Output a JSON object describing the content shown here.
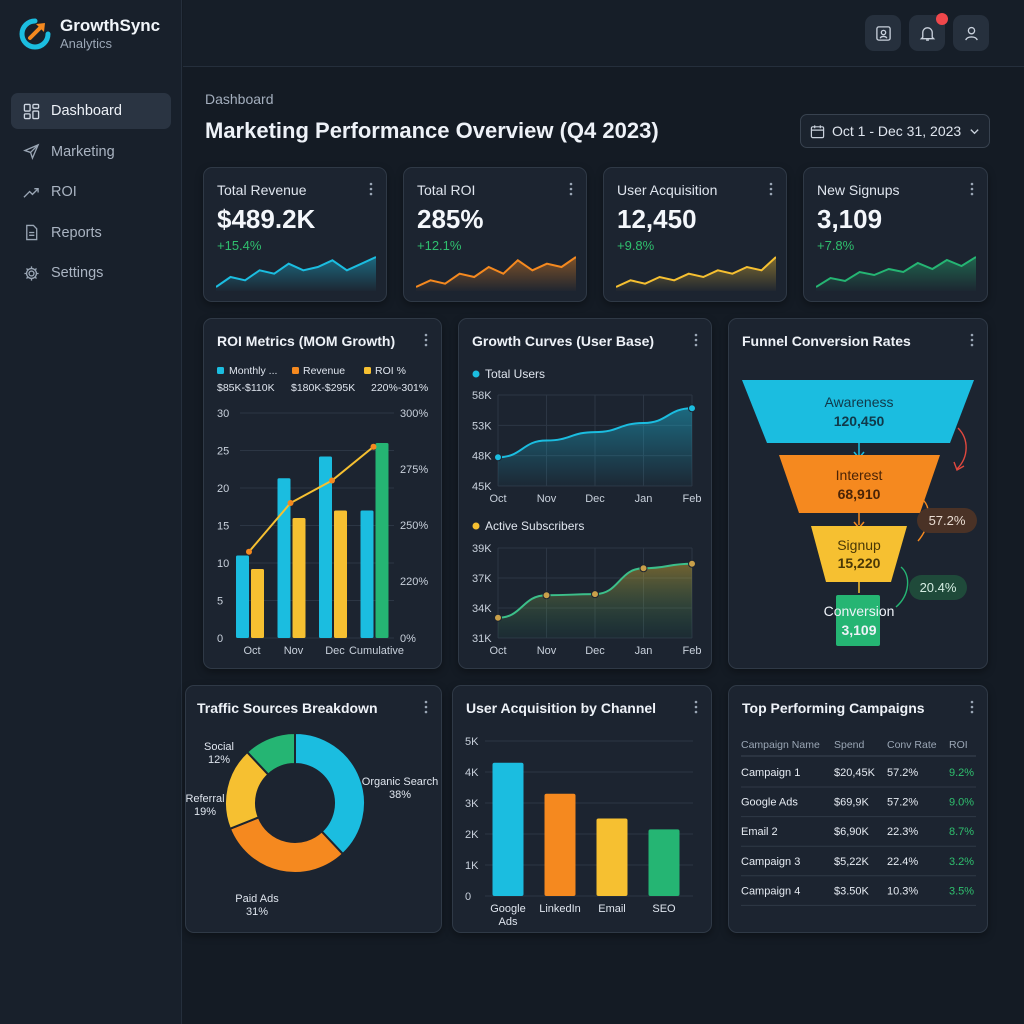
{
  "brand": {
    "name": "GrowthSync",
    "sub": "Analytics"
  },
  "sidebar": {
    "items": [
      {
        "label": "Dashboard",
        "icon": "dashboard-icon",
        "active": true
      },
      {
        "label": "Marketing",
        "icon": "rocket-icon"
      },
      {
        "label": "ROI",
        "icon": "trend-icon"
      },
      {
        "label": "Reports",
        "icon": "document-icon"
      },
      {
        "label": "Settings",
        "icon": "gear-icon"
      }
    ]
  },
  "header": {
    "breadcrumb": "Dashboard",
    "title": "Marketing Performance Overview (Q4 2023)",
    "date_range": "Oct 1 - Dec 31, 2023"
  },
  "colors": {
    "cyan": "#1bbde0",
    "orange": "#f5891f",
    "yellow": "#f6c031",
    "green": "#25b573",
    "positive": "#2fbf6e"
  },
  "kpis": [
    {
      "title": "Total Revenue",
      "value": "$489.2K",
      "delta": "+15.4%",
      "color": "#1bbde0",
      "trend": [
        4,
        7,
        6,
        9,
        8,
        11,
        9,
        10,
        12,
        9,
        11,
        13
      ]
    },
    {
      "title": "Total ROI",
      "value": "285%",
      "delta": "+12.1%",
      "color": "#f5891f",
      "trend": [
        4,
        6,
        5,
        8,
        7,
        10,
        8,
        12,
        9,
        11,
        10,
        13
      ]
    },
    {
      "title": "User Acquisition",
      "value": "12,450",
      "delta": "+9.8%",
      "color": "#f6c031",
      "trend": [
        4,
        6,
        5,
        7,
        6,
        8,
        7,
        9,
        8,
        10,
        9,
        13
      ]
    },
    {
      "title": "New Signups",
      "value": "3,109",
      "delta": "+7.8%",
      "color": "#25b573",
      "trend": [
        3,
        6,
        5,
        8,
        7,
        9,
        8,
        11,
        9,
        12,
        10,
        13
      ]
    }
  ],
  "roi_metrics": {
    "title": "ROI Metrics (MOM Growth)",
    "legend": [
      {
        "name": "Monthly ...",
        "range": "$85K-$110K",
        "color": "#1bbde0"
      },
      {
        "name": "Revenue",
        "range": "$180K-$295K",
        "color": "#f5891f"
      },
      {
        "name": "ROI %",
        "range": "220%-301%",
        "color": "#f6c031"
      }
    ]
  },
  "growth_curves": {
    "title": "Growth Curves (User Base)"
  },
  "funnel": {
    "title": "Funnel Conversion Rates",
    "stages": [
      {
        "name": "Awareness",
        "value": "120,450",
        "color": "#1bbde0"
      },
      {
        "name": "Interest",
        "value": "68,910",
        "color": "#f5891f"
      },
      {
        "name": "Signup",
        "value": "15,220",
        "color": "#f6c031"
      },
      {
        "name": "Conversion",
        "value": "3,109",
        "color": "#25b573"
      }
    ],
    "rates": [
      "57.2%",
      "20.4%"
    ]
  },
  "traffic": {
    "title": "Traffic Sources Breakdown"
  },
  "acquisition": {
    "title": "User Acquisition by Channel"
  },
  "campaigns": {
    "title": "Top Performing Campaigns",
    "columns": [
      "Campaign Name",
      "Spend",
      "Conv Rate",
      "ROI"
    ],
    "rows": [
      [
        "Campaign 1",
        "$20,45K",
        "57.2%",
        "9.2%"
      ],
      [
        "Google Ads",
        "$69,9K",
        "57.2%",
        "9.0%"
      ],
      [
        "Email 2",
        "$6,90K",
        "22.3%",
        "8.7%"
      ],
      [
        "Campaign 3",
        "$5,22K",
        "22.4%",
        "3.2%"
      ],
      [
        "Campaign 4",
        "$3.50K",
        "10.3%",
        "3.5%"
      ]
    ]
  },
  "chart_data": [
    {
      "type": "bar",
      "title": "ROI Metrics (MOM Growth)",
      "categories": [
        "Oct",
        "Nov",
        "Dec",
        "Cumulative"
      ],
      "y_ticks": [
        "0",
        "5",
        "10",
        "15",
        "20",
        "25",
        "30"
      ],
      "y2_ticks": [
        "0%",
        "220%",
        "250%",
        "275%",
        "300%"
      ],
      "ylim": [
        0,
        30
      ],
      "series": [
        {
          "name": "Monthly ...",
          "values": [
            11,
            21.3,
            24.2,
            17
          ],
          "color": "#1bbde0"
        },
        {
          "name": "Revenue",
          "values": [
            9.2,
            16,
            17,
            26
          ],
          "color": "#f5891f"
        },
        {
          "name": "ROI %",
          "values": [
            11.5,
            18,
            21,
            25.5
          ],
          "color": "#f6c031",
          "kind": "line"
        }
      ]
    },
    {
      "type": "area",
      "title": "Total Users",
      "x": [
        "Oct",
        "Nov",
        "Dec",
        "Jan",
        "Feb"
      ],
      "y_ticks": [
        "45K",
        "48K",
        "53K",
        "58K"
      ],
      "ylim": [
        45,
        58
      ],
      "values": [
        49.1,
        51.5,
        52.7,
        54.0,
        56.1
      ],
      "color": "#1bbde0"
    },
    {
      "type": "area",
      "title": "Active Subscribers",
      "x": [
        "Oct",
        "Nov",
        "Dec",
        "Jan",
        "Feb"
      ],
      "y_ticks": [
        "31K",
        "34K",
        "37K",
        "39K"
      ],
      "ylim": [
        31,
        39
      ],
      "values": [
        32.8,
        34.8,
        34.9,
        37.2,
        37.6
      ],
      "color": "#f6c031"
    },
    {
      "type": "pie",
      "title": "Traffic Sources Breakdown",
      "slices": [
        {
          "label": "Organic Search",
          "pct": "38%",
          "value": 38,
          "color": "#1bbde0"
        },
        {
          "label": "Paid Ads",
          "pct": "31%",
          "value": 31,
          "color": "#f5891f"
        },
        {
          "label": "Referral",
          "pct": "19%",
          "value": 19,
          "color": "#f6c031"
        },
        {
          "label": "Social",
          "pct": "12%",
          "value": 12,
          "color": "#25b573"
        }
      ]
    },
    {
      "type": "bar",
      "title": "User Acquisition by Channel",
      "categories": [
        "Google Ads",
        "LinkedIn",
        "Email",
        "SEO"
      ],
      "y_ticks": [
        "0",
        "1K",
        "2K",
        "3K",
        "4K",
        "5K"
      ],
      "ylim": [
        0,
        5
      ],
      "values": [
        4.3,
        3.3,
        2.5,
        2.15
      ],
      "colors": [
        "#1bbde0",
        "#f5891f",
        "#f6c031",
        "#25b573"
      ]
    }
  ]
}
